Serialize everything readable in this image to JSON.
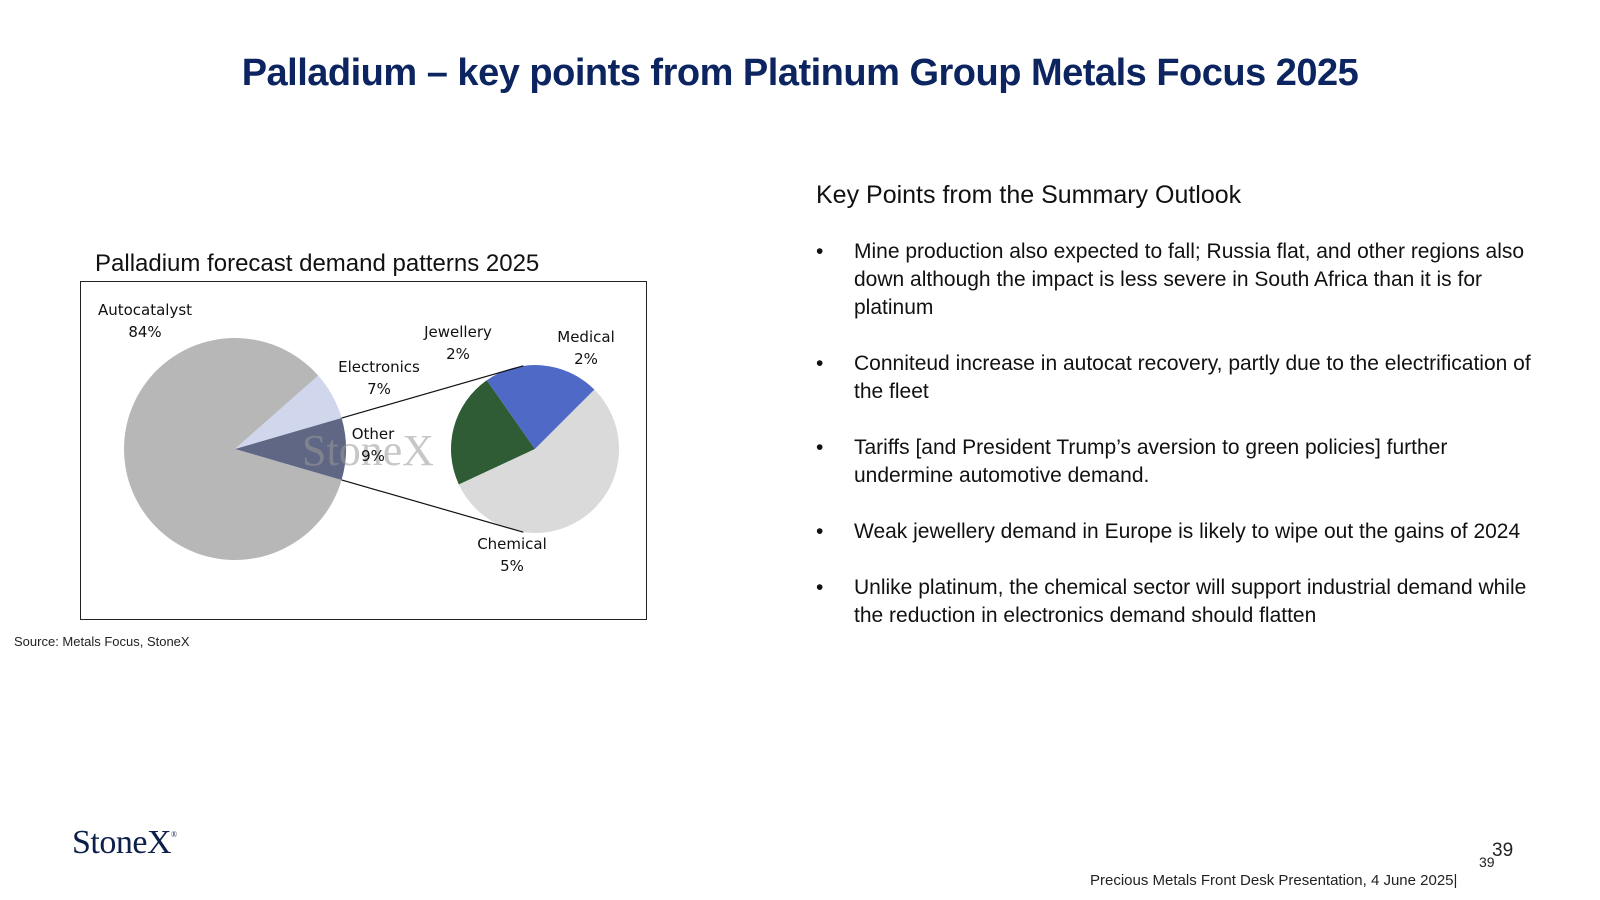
{
  "page_title": "Palladium – key points from Platinum Group Metals Focus 2025",
  "chart_data": {
    "type": "pie",
    "title": "Palladium forecast demand patterns 2025",
    "slices": [
      {
        "label": "Autocatalyst",
        "value": 84,
        "pct_label": "84%",
        "color": "#b7b7b7"
      },
      {
        "label": "Electronics",
        "value": 7,
        "pct_label": "7%",
        "color": "#d0d6ec"
      },
      {
        "label": "Other",
        "value": 9,
        "pct_label": "9%",
        "color": "#5f6784"
      }
    ],
    "breakdown_of": "Other",
    "breakdown": [
      {
        "label": "Jewellery",
        "value": 2,
        "pct_label": "2%",
        "color": "#2f5c35"
      },
      {
        "label": "Medical",
        "value": 2,
        "pct_label": "2%",
        "color": "#4f69c6"
      },
      {
        "label": "Chemical",
        "value": 5,
        "pct_label": "5%",
        "color": "#dadada"
      }
    ],
    "watermark": "StoneX"
  },
  "source": "Source: Metals Focus, StoneX",
  "key_points": {
    "heading": "Key Points from the Summary Outlook",
    "bullet_symbol": "•",
    "items": [
      "Mine production also expected to fall; Russia flat, and other regions also down although the impact is less severe in South Africa than it is for platinum",
      "Conniteud increase in autocat recovery, partly due to the electrification of the fleet",
      "Tariffs [and President Trump’s aversion to green policies] further undermine automotive demand.",
      "Weak jewellery demand in Europe is likely to wipe out the gains of 2024",
      "Unlike platinum, the chemical sector will support industrial demand while the reduction in electronics demand should flatten"
    ]
  },
  "logo": {
    "text": "StoneX",
    "mark": "®"
  },
  "page_number": "39",
  "page_number_small": "39",
  "footer": "Precious Metals Front Desk Presentation, 4 June 2025|"
}
